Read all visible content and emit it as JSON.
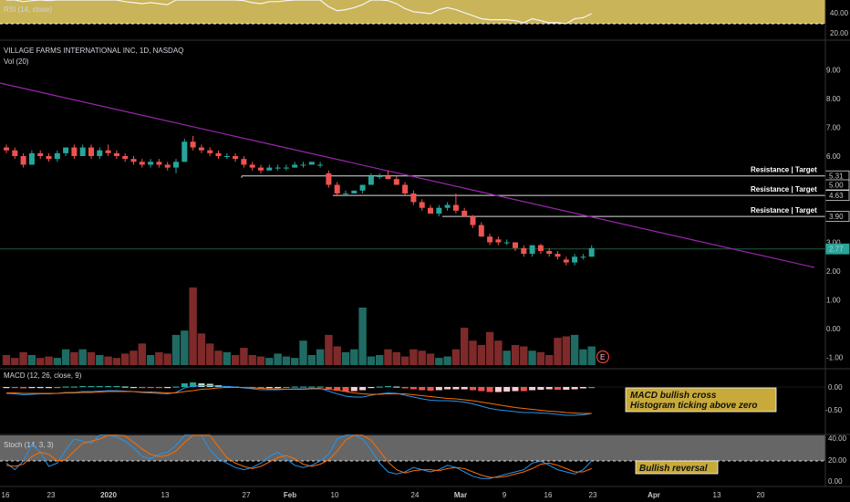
{
  "header": {
    "symbol_title": "VILLAGE FARMS INTERNATIONAL INC, 1D, NASDAQ",
    "volume_label": "Vol (20)",
    "rsi_label": "RSI (14, close)",
    "macd_label": "MACD (12, 26, close, 9)",
    "stoch_label": "Stoch (14, 3, 3)"
  },
  "colors": {
    "up": "#26a69a",
    "down": "#ef5350",
    "up_volume": "#1f6b63",
    "down_volume": "#7e2a2a",
    "trendline": "#9c27b0",
    "rsi_band": "#c9b45a",
    "macd_line": "#2196f3",
    "signal_line": "#ff6d00",
    "stoch_band": "#666666",
    "note_bg": "#c8aa3a"
  },
  "x_axis": {
    "labels": [
      "16",
      "23",
      "2020",
      "13",
      "27",
      "Feb",
      "10",
      "24",
      "Mar",
      "9",
      "16",
      "23",
      "Apr",
      "13",
      "20"
    ]
  },
  "rsi": {
    "ticks": [
      "40.00",
      "20.00"
    ]
  },
  "price_axis": {
    "ticks": [
      "9.00",
      "8.00",
      "7.00",
      "6.00",
      "5.00",
      "4.00",
      "3.00",
      "2.00",
      "1.00",
      "0.00",
      "-1.00"
    ]
  },
  "macd_axis": {
    "ticks": [
      "0.00",
      "-0.50"
    ]
  },
  "stoch_axis": {
    "ticks": [
      "40.00",
      "20.00",
      "0.00"
    ]
  },
  "levels": [
    {
      "label": "Resistance | Target",
      "price_tag": "5.31"
    },
    {
      "label": "",
      "price_tag": "5.00"
    },
    {
      "label": "Resistance | Target",
      "price_tag": "4.63"
    },
    {
      "label": "Resistance | Target",
      "price_tag": "3.90"
    },
    {
      "label": "",
      "price_tag": "2.77"
    }
  ],
  "earnings_marker": "E",
  "annotations": {
    "macd_line1": "MACD bullish cross",
    "macd_line2": "Histogram ticking above zero",
    "stoch": "Bullish reversal"
  },
  "chart_data": {
    "type": "candlestick",
    "title": "VILLAGE FARMS INTERNATIONAL INC, 1D, NASDAQ",
    "candles": [
      [
        6.3,
        6.4,
        6.1,
        6.2
      ],
      [
        6.2,
        6.3,
        5.9,
        6.0
      ],
      [
        6.0,
        6.1,
        5.6,
        5.7
      ],
      [
        5.7,
        6.2,
        5.7,
        6.1
      ],
      [
        6.1,
        6.2,
        5.9,
        6.0
      ],
      [
        6.0,
        6.1,
        5.8,
        5.9
      ],
      [
        5.9,
        6.2,
        5.8,
        6.1
      ],
      [
        6.1,
        6.3,
        6.0,
        6.3
      ],
      [
        6.3,
        6.4,
        5.9,
        6.0
      ],
      [
        6.0,
        6.4,
        6.0,
        6.3
      ],
      [
        6.3,
        6.4,
        5.9,
        6.0
      ],
      [
        6.0,
        6.3,
        5.9,
        6.2
      ],
      [
        6.2,
        6.4,
        6.0,
        6.1
      ],
      [
        6.1,
        6.2,
        5.9,
        6.0
      ],
      [
        6.0,
        6.1,
        5.8,
        5.9
      ],
      [
        5.9,
        6.0,
        5.7,
        5.8
      ],
      [
        5.8,
        5.9,
        5.6,
        5.7
      ],
      [
        5.7,
        5.9,
        5.6,
        5.8
      ],
      [
        5.8,
        5.9,
        5.6,
        5.7
      ],
      [
        5.7,
        5.8,
        5.5,
        5.6
      ],
      [
        5.6,
        5.9,
        5.4,
        5.8
      ],
      [
        5.8,
        6.6,
        5.8,
        6.5
      ],
      [
        6.5,
        6.7,
        6.2,
        6.3
      ],
      [
        6.3,
        6.4,
        6.1,
        6.2
      ],
      [
        6.2,
        6.3,
        6.0,
        6.1
      ],
      [
        6.1,
        6.2,
        5.9,
        6.0
      ],
      [
        6.0,
        6.1,
        5.9,
        6.0
      ],
      [
        6.0,
        6.1,
        5.8,
        5.9
      ],
      [
        5.9,
        6.0,
        5.6,
        5.7
      ],
      [
        5.7,
        5.8,
        5.5,
        5.6
      ],
      [
        5.6,
        5.7,
        5.4,
        5.5
      ],
      [
        5.5,
        5.7,
        5.5,
        5.6
      ],
      [
        5.6,
        5.7,
        5.5,
        5.6
      ],
      [
        5.6,
        5.7,
        5.5,
        5.6
      ],
      [
        5.6,
        5.8,
        5.6,
        5.7
      ],
      [
        5.7,
        5.8,
        5.6,
        5.7
      ],
      [
        5.7,
        5.8,
        5.7,
        5.8
      ],
      [
        5.7,
        5.8,
        5.6,
        5.7
      ],
      [
        5.4,
        5.5,
        4.9,
        5.0
      ],
      [
        5.0,
        5.1,
        4.6,
        4.7
      ],
      [
        4.7,
        4.8,
        4.6,
        4.7
      ],
      [
        4.7,
        4.8,
        4.7,
        4.8
      ],
      [
        4.8,
        5.0,
        4.7,
        5.0
      ],
      [
        5.0,
        5.4,
        5.0,
        5.3
      ],
      [
        5.3,
        5.4,
        5.2,
        5.3
      ],
      [
        5.3,
        5.5,
        5.2,
        5.2
      ],
      [
        5.2,
        5.3,
        5.0,
        5.0
      ],
      [
        5.0,
        5.1,
        4.6,
        4.7
      ],
      [
        4.7,
        4.8,
        4.3,
        4.4
      ],
      [
        4.4,
        4.5,
        4.1,
        4.2
      ],
      [
        4.2,
        4.3,
        4.0,
        4.0
      ],
      [
        4.0,
        4.3,
        3.9,
        4.2
      ],
      [
        4.2,
        4.4,
        4.1,
        4.3
      ],
      [
        4.3,
        4.7,
        4.0,
        4.1
      ],
      [
        4.1,
        4.2,
        3.9,
        3.9
      ],
      [
        3.9,
        3.95,
        3.5,
        3.6
      ],
      [
        3.6,
        3.7,
        3.2,
        3.2
      ],
      [
        3.2,
        3.3,
        2.9,
        3.0
      ],
      [
        3.1,
        3.2,
        2.9,
        3.0
      ],
      [
        3.0,
        3.1,
        2.9,
        3.0
      ],
      [
        3.0,
        3.0,
        2.7,
        2.8
      ],
      [
        2.8,
        2.9,
        2.5,
        2.6
      ],
      [
        2.6,
        2.9,
        2.5,
        2.9
      ],
      [
        2.9,
        2.95,
        2.6,
        2.7
      ],
      [
        2.7,
        2.8,
        2.5,
        2.6
      ],
      [
        2.6,
        2.7,
        2.4,
        2.5
      ],
      [
        2.4,
        2.5,
        2.2,
        2.3
      ],
      [
        2.3,
        2.6,
        2.2,
        2.5
      ],
      [
        2.5,
        2.6,
        2.4,
        2.5
      ],
      [
        2.5,
        2.9,
        2.5,
        2.8
      ]
    ],
    "volume": [
      0.35,
      0.25,
      0.45,
      0.35,
      0.25,
      0.3,
      0.25,
      0.55,
      0.45,
      0.55,
      0.45,
      0.35,
      0.3,
      0.25,
      0.4,
      0.5,
      0.75,
      0.35,
      0.45,
      0.4,
      1.05,
      1.2,
      2.7,
      1.1,
      0.75,
      0.5,
      0.45,
      0.35,
      0.6,
      0.35,
      0.3,
      0.25,
      0.4,
      0.3,
      0.25,
      0.85,
      0.35,
      0.55,
      1.05,
      0.65,
      0.45,
      0.55,
      2.0,
      0.3,
      0.35,
      0.55,
      0.45,
      0.3,
      0.55,
      0.5,
      0.4,
      0.25,
      0.3,
      0.55,
      1.3,
      0.85,
      0.7,
      1.15,
      0.85,
      0.5,
      0.7,
      0.65,
      0.5,
      0.45,
      0.35,
      0.95,
      1.0,
      1.05,
      0.55,
      0.65
    ],
    "resistance_levels": [
      5.31,
      4.63,
      3.9
    ],
    "price_tags": [
      5.31,
      5.0,
      4.63,
      3.9,
      2.77
    ],
    "current_price": 2.77,
    "y_range": [
      -1.6,
      9.5
    ],
    "rsi_values": [
      48,
      45,
      42,
      43,
      44,
      43,
      45,
      47,
      44,
      46,
      44,
      46,
      45,
      44,
      42,
      41,
      40,
      41,
      40,
      39,
      44,
      56,
      52,
      50,
      48,
      47,
      47,
      46,
      43,
      41,
      40,
      42,
      42,
      43,
      44,
      44,
      45,
      44,
      37,
      33,
      34,
      36,
      39,
      44,
      44,
      43,
      40,
      35,
      32,
      31,
      30,
      34,
      36,
      34,
      31,
      28,
      25,
      24,
      24,
      24,
      23,
      21,
      25,
      23,
      21,
      21,
      20,
      25,
      26,
      30
    ],
    "rsi_range": [
      10,
      48
    ],
    "macd": [
      -0.14,
      -0.15,
      -0.17,
      -0.16,
      -0.15,
      -0.15,
      -0.14,
      -0.12,
      -0.12,
      -0.1,
      -0.1,
      -0.09,
      -0.08,
      -0.08,
      -0.09,
      -0.1,
      -0.12,
      -0.13,
      -0.14,
      -0.15,
      -0.12,
      -0.02,
      0.02,
      0.03,
      0.03,
      0.02,
      0.01,
      0.0,
      -0.02,
      -0.04,
      -0.06,
      -0.06,
      -0.06,
      -0.05,
      -0.04,
      -0.04,
      -0.03,
      -0.03,
      -0.09,
      -0.15,
      -0.2,
      -0.22,
      -0.22,
      -0.18,
      -0.15,
      -0.13,
      -0.14,
      -0.18,
      -0.22,
      -0.26,
      -0.29,
      -0.3,
      -0.3,
      -0.31,
      -0.33,
      -0.37,
      -0.42,
      -0.47,
      -0.5,
      -0.52,
      -0.54,
      -0.56,
      -0.56,
      -0.57,
      -0.58,
      -0.6,
      -0.62,
      -0.62,
      -0.61,
      -0.58
    ],
    "signal": [
      -0.13,
      -0.13,
      -0.14,
      -0.14,
      -0.14,
      -0.14,
      -0.14,
      -0.13,
      -0.13,
      -0.12,
      -0.12,
      -0.11,
      -0.1,
      -0.1,
      -0.1,
      -0.1,
      -0.11,
      -0.11,
      -0.12,
      -0.13,
      -0.13,
      -0.1,
      -0.08,
      -0.05,
      -0.04,
      -0.02,
      -0.01,
      -0.01,
      -0.01,
      -0.02,
      -0.03,
      -0.04,
      -0.04,
      -0.05,
      -0.05,
      -0.05,
      -0.04,
      -0.04,
      -0.05,
      -0.07,
      -0.1,
      -0.13,
      -0.15,
      -0.16,
      -0.16,
      -0.15,
      -0.15,
      -0.15,
      -0.17,
      -0.19,
      -0.21,
      -0.23,
      -0.25,
      -0.26,
      -0.28,
      -0.3,
      -0.33,
      -0.36,
      -0.39,
      -0.42,
      -0.45,
      -0.47,
      -0.49,
      -0.51,
      -0.53,
      -0.54,
      -0.56,
      -0.57,
      -0.58,
      -0.58
    ],
    "macd_range": [
      -0.75,
      0.12
    ],
    "stoch_k": [
      18,
      12,
      20,
      35,
      28,
      15,
      18,
      30,
      40,
      38,
      36,
      45,
      50,
      42,
      38,
      32,
      24,
      22,
      26,
      28,
      34,
      48,
      55,
      46,
      30,
      22,
      18,
      14,
      12,
      14,
      18,
      24,
      28,
      22,
      16,
      14,
      16,
      20,
      26,
      40,
      52,
      48,
      40,
      30,
      18,
      10,
      8,
      10,
      14,
      12,
      10,
      12,
      16,
      14,
      10,
      6,
      4,
      4,
      6,
      8,
      10,
      12,
      18,
      20,
      16,
      12,
      10,
      8,
      12,
      20
    ],
    "stoch_d": [
      16,
      15,
      17,
      24,
      28,
      26,
      20,
      21,
      29,
      36,
      38,
      40,
      44,
      46,
      43,
      37,
      31,
      26,
      24,
      25,
      29,
      37,
      46,
      50,
      44,
      33,
      23,
      18,
      15,
      13,
      15,
      19,
      23,
      25,
      22,
      17,
      15,
      17,
      21,
      29,
      39,
      47,
      47,
      39,
      29,
      19,
      12,
      9,
      11,
      12,
      12,
      11,
      13,
      14,
      13,
      10,
      7,
      5,
      5,
      6,
      8,
      10,
      13,
      17,
      18,
      16,
      13,
      10,
      10,
      13
    ],
    "stoch_range": [
      0,
      48
    ]
  }
}
